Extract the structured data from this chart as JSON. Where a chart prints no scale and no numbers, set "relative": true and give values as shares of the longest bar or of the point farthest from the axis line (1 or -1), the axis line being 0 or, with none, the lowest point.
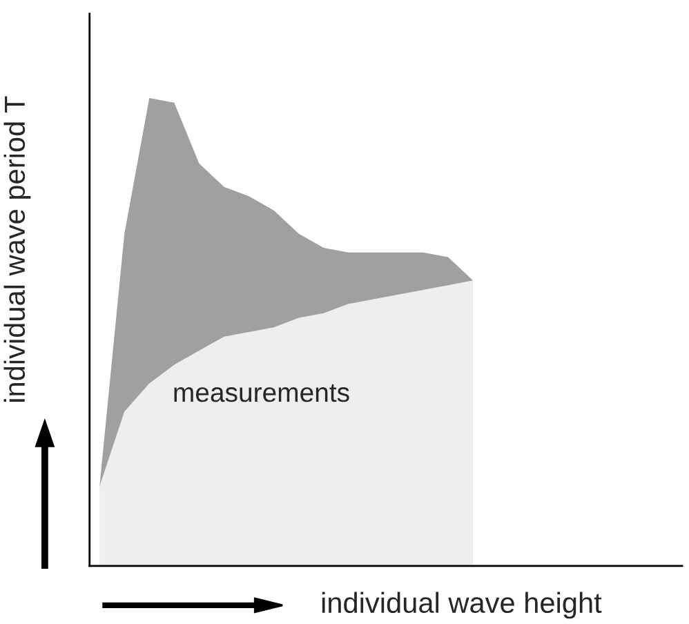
{
  "chart_data": {
    "type": "area",
    "relative": true,
    "stacked": true,
    "xlabel": "individual wave height",
    "ylabel": "individual wave period T",
    "annotations": [
      "measurements"
    ],
    "categories": [
      null,
      null,
      null,
      null,
      null,
      null,
      null,
      null,
      null,
      null,
      null,
      null,
      null,
      null,
      null,
      null
    ],
    "series": [
      {
        "color": "#eeeeee",
        "values": [
          0.17,
          0.33,
          0.39,
          0.43,
          0.46,
          0.49,
          0.5,
          0.51,
          0.53,
          0.54,
          0.56,
          0.57,
          0.58,
          0.59,
          0.6,
          0.61
        ]
      },
      {
        "color": "#a0a0a0",
        "values": [
          0,
          0.38,
          0.61,
          0.56,
          0.4,
          0.32,
          0.29,
          0.25,
          0.18,
          0.14,
          0.11,
          0.1,
          0.09,
          0.08,
          0.06,
          0
        ]
      }
    ]
  }
}
